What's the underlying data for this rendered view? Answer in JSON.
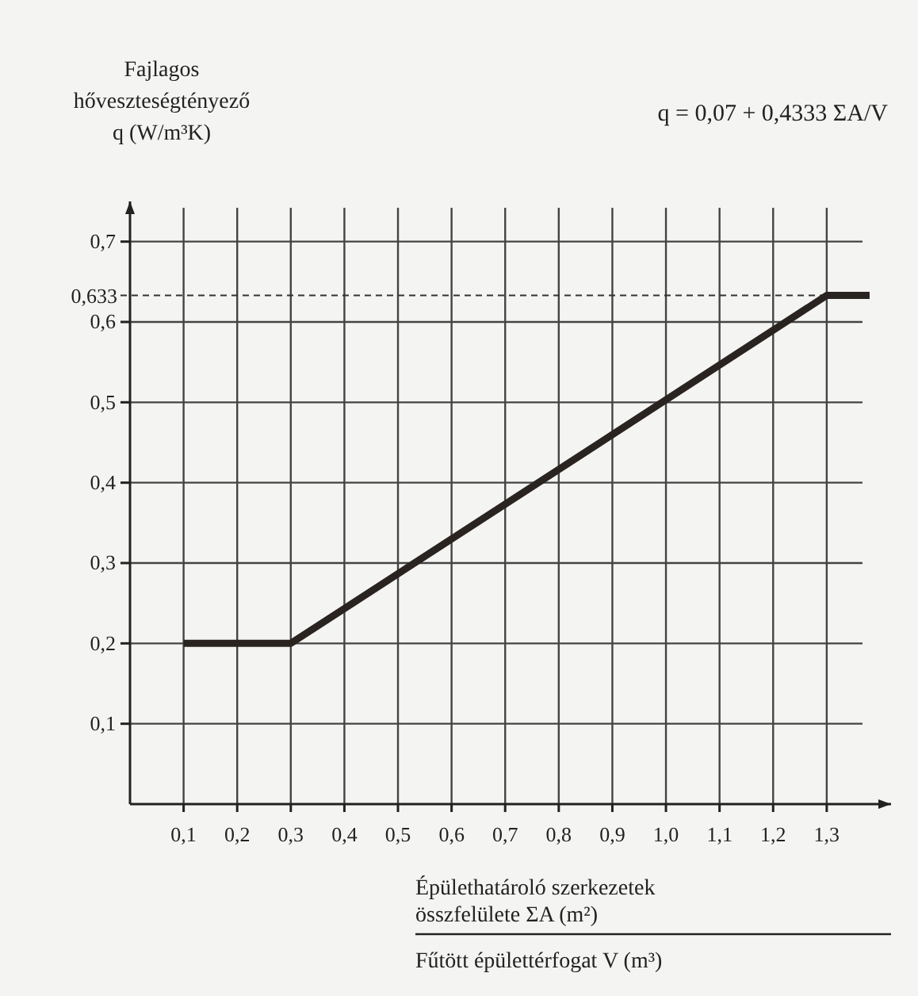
{
  "chart_data": {
    "type": "line",
    "ylabel": "Fajlagos\nhőveszteségtényező\nq (W/m³K)",
    "xlabel": "Épülethatároló szerkezetek\nösszfelülete ΣA (m²)",
    "annotations": [
      "Fűtött épülettérfogat V (m³)",
      "q = 0,07 + 0,4333 ΣA/V"
    ],
    "xlim": [
      0,
      1.42
    ],
    "ylim": [
      0,
      0.75
    ],
    "xticks": [
      {
        "value": 0.1,
        "label": "0,1"
      },
      {
        "value": 0.2,
        "label": "0,2"
      },
      {
        "value": 0.3,
        "label": "0,3"
      },
      {
        "value": 0.4,
        "label": "0,4"
      },
      {
        "value": 0.5,
        "label": "0,5"
      },
      {
        "value": 0.6,
        "label": "0,6"
      },
      {
        "value": 0.7,
        "label": "0,7"
      },
      {
        "value": 0.8,
        "label": "0,8"
      },
      {
        "value": 0.9,
        "label": "0,9"
      },
      {
        "value": 1.0,
        "label": "1,0"
      },
      {
        "value": 1.1,
        "label": "1,1"
      },
      {
        "value": 1.2,
        "label": "1,2"
      },
      {
        "value": 1.3,
        "label": "1,3"
      }
    ],
    "yticks": [
      {
        "value": 0.1,
        "label": "0,1"
      },
      {
        "value": 0.2,
        "label": "0,2"
      },
      {
        "value": 0.3,
        "label": "0,3"
      },
      {
        "value": 0.4,
        "label": "0,4"
      },
      {
        "value": 0.5,
        "label": "0,5"
      },
      {
        "value": 0.6,
        "label": "0,6"
      },
      {
        "value": 0.7,
        "label": "0,7"
      }
    ],
    "grid": true,
    "marker": "none",
    "line_style": "solid",
    "ref_lines": [
      {
        "axis": "y",
        "value": 0.633,
        "label": "0,633",
        "line_style": "dashed",
        "color": "#333333"
      }
    ],
    "series": [
      {
        "color": "#2a2420",
        "x": [
          0.1,
          0.3,
          1.3,
          1.38
        ],
        "values": [
          0.2,
          0.2,
          0.633,
          0.633
        ]
      }
    ]
  }
}
